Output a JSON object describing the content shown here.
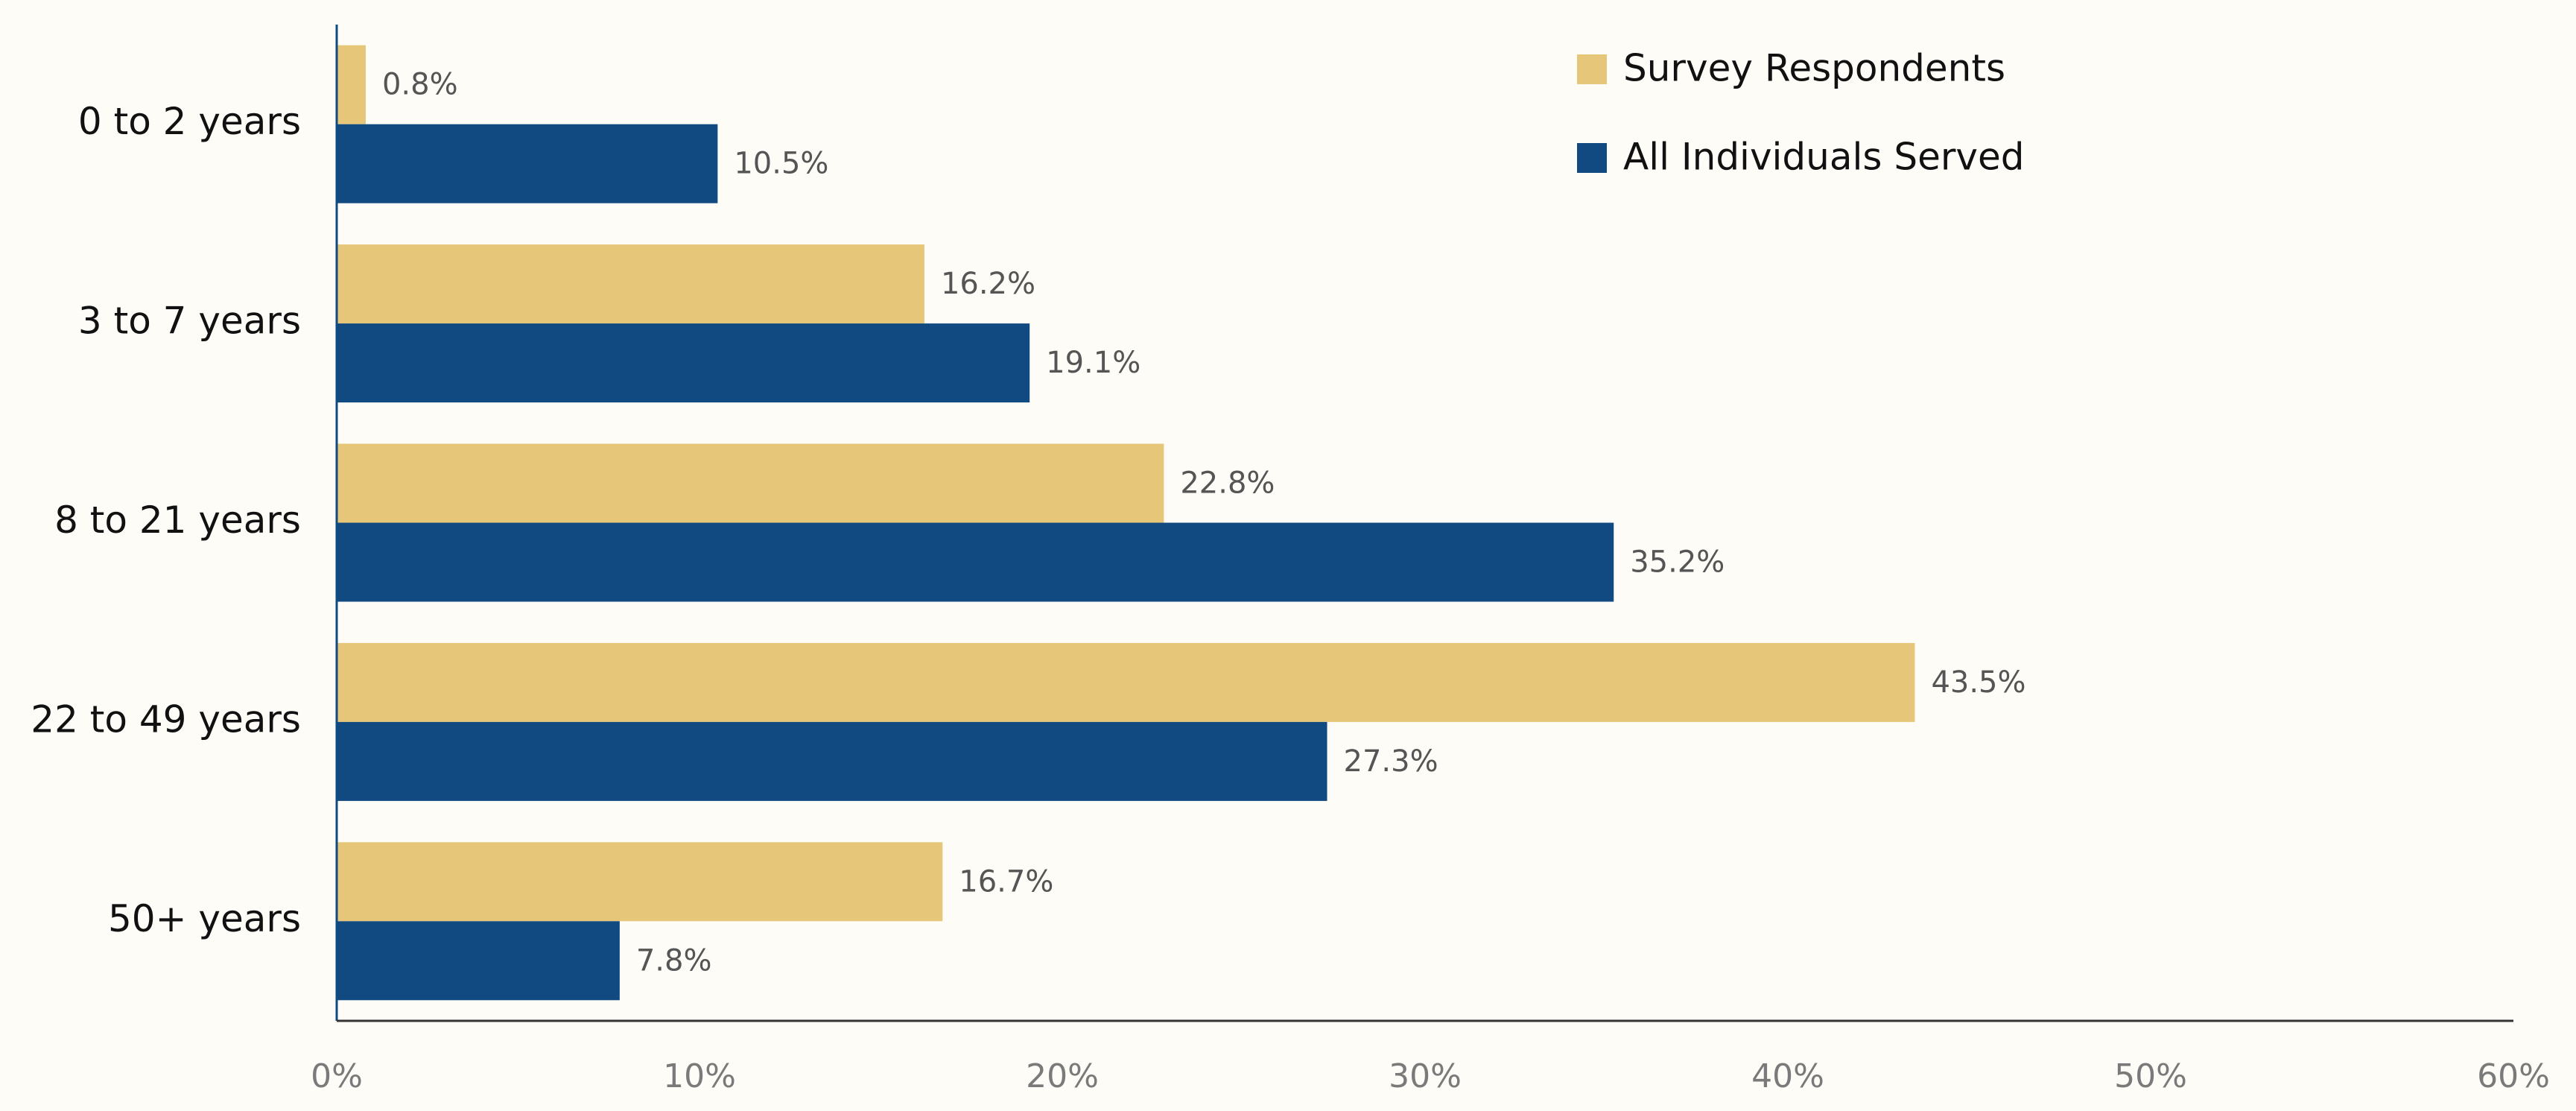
{
  "chart_data": {
    "type": "hbar",
    "categories": [
      "0 to 2 years",
      "3 to 7 years",
      "8 to 21 years",
      "22 to 49 years",
      "50+ years"
    ],
    "series": [
      {
        "name": "Survey Respondents",
        "color": "#e6c77a",
        "values": [
          0.8,
          16.2,
          22.8,
          43.5,
          16.7
        ],
        "value_labels": [
          "0.8%",
          "16.2%",
          "22.8%",
          "43.5%",
          "16.7%"
        ]
      },
      {
        "name": "All Individuals Served",
        "color": "#114a80",
        "values": [
          10.5,
          19.1,
          35.2,
          27.3,
          7.8
        ],
        "value_labels": [
          "10.5%",
          "19.1%",
          "35.2%",
          "27.3%",
          "7.8%"
        ]
      }
    ],
    "xlim": [
      0,
      60
    ],
    "xticks": [
      {
        "value": 0,
        "label": "0%"
      },
      {
        "value": 10,
        "label": "10%"
      },
      {
        "value": 20,
        "label": "20%"
      },
      {
        "value": 30,
        "label": "30%"
      },
      {
        "value": 40,
        "label": "40%"
      },
      {
        "value": 50,
        "label": "50%"
      },
      {
        "value": 60,
        "label": "60%"
      }
    ],
    "legend": "upper right"
  }
}
